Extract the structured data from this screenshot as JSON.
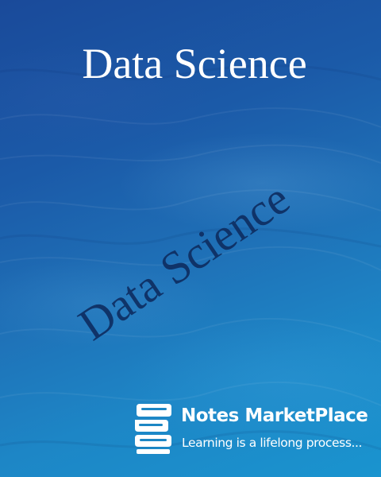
{
  "cover": {
    "title": "Data Science",
    "watermark": "Data Science",
    "colors": {
      "background_top": "#1a4a9a",
      "background_bottom": "#1a94cf",
      "title": "#ffffff",
      "watermark": "#0e2e62",
      "logo": "#ffffff"
    }
  },
  "logo": {
    "icon": "stacked-books-icon",
    "name": "Notes MarketPlace",
    "tagline": "Learning is a lifelong process..."
  }
}
